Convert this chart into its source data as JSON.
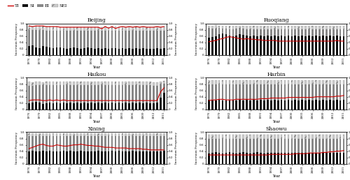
{
  "years": [
    1976,
    1977,
    1978,
    1979,
    1980,
    1981,
    1982,
    1983,
    1984,
    1985,
    1986,
    1987,
    1988,
    1989,
    1990,
    1991,
    1992,
    1993,
    1994,
    1995,
    1996,
    1997,
    1998,
    1999,
    2000,
    2001,
    2002,
    2003,
    2004,
    2005,
    2006,
    2007,
    2008,
    2009,
    2010,
    2011,
    2012,
    2013,
    2014,
    2015
  ],
  "stations": [
    "Beijing",
    "Ruoqiang",
    "Haikou",
    "Harbin",
    "Xining",
    "Shaowu"
  ],
  "TI_color": "#cc0000",
  "SI_color": "#111111",
  "EI_color": "#888888",
  "SEI_color": "#cccccc",
  "data": {
    "Beijing": {
      "SI": [
        0.28,
        0.3,
        0.25,
        0.22,
        0.28,
        0.26,
        0.24,
        0.22,
        0.25,
        0.24,
        0.22,
        0.2,
        0.22,
        0.24,
        0.22,
        0.2,
        0.22,
        0.24,
        0.22,
        0.2,
        0.22,
        0.2,
        0.22,
        0.2,
        0.22,
        0.22,
        0.2,
        0.22,
        0.2,
        0.22,
        0.2,
        0.22,
        0.2,
        0.22,
        0.2,
        0.2,
        0.2,
        0.22,
        0.2,
        0.22
      ],
      "EI": [
        0.52,
        0.5,
        0.55,
        0.56,
        0.52,
        0.52,
        0.54,
        0.56,
        0.52,
        0.52,
        0.54,
        0.56,
        0.54,
        0.52,
        0.54,
        0.56,
        0.54,
        0.52,
        0.54,
        0.56,
        0.54,
        0.58,
        0.56,
        0.58,
        0.56,
        0.56,
        0.58,
        0.56,
        0.58,
        0.56,
        0.58,
        0.56,
        0.58,
        0.56,
        0.58,
        0.58,
        0.58,
        0.56,
        0.58,
        0.56
      ],
      "SEI": [
        0.12,
        0.1,
        0.12,
        0.14,
        0.12,
        0.12,
        0.12,
        0.12,
        0.13,
        0.12,
        0.12,
        0.12,
        0.12,
        0.12,
        0.12,
        0.12,
        0.12,
        0.12,
        0.12,
        0.12,
        0.12,
        0.1,
        0.12,
        0.1,
        0.12,
        0.12,
        0.1,
        0.12,
        0.1,
        0.12,
        0.1,
        0.12,
        0.1,
        0.12,
        0.1,
        0.1,
        0.1,
        0.12,
        0.1,
        0.12
      ],
      "TI": [
        0.92,
        0.9,
        0.92,
        0.92,
        0.92,
        0.9,
        0.9,
        0.9,
        0.9,
        0.88,
        0.88,
        0.88,
        0.88,
        0.88,
        0.88,
        0.88,
        0.88,
        0.88,
        0.88,
        0.88,
        0.88,
        0.83,
        0.9,
        0.85,
        0.9,
        0.84,
        0.88,
        0.9,
        0.88,
        0.9,
        0.88,
        0.9,
        0.88,
        0.9,
        0.88,
        0.88,
        0.88,
        0.9,
        0.88,
        0.9
      ]
    },
    "Ruoqiang": {
      "SI": [
        0.55,
        0.58,
        0.6,
        0.65,
        0.68,
        0.65,
        0.62,
        0.6,
        0.62,
        0.65,
        0.63,
        0.62,
        0.6,
        0.62,
        0.6,
        0.62,
        0.6,
        0.62,
        0.6,
        0.62,
        0.6,
        0.62,
        0.6,
        0.62,
        0.6,
        0.62,
        0.6,
        0.62,
        0.6,
        0.62,
        0.6,
        0.62,
        0.6,
        0.62,
        0.6,
        0.62,
        0.6,
        0.62,
        0.6,
        0.6
      ],
      "EI": [
        0.3,
        0.26,
        0.24,
        0.2,
        0.16,
        0.18,
        0.2,
        0.22,
        0.22,
        0.2,
        0.2,
        0.2,
        0.22,
        0.2,
        0.22,
        0.2,
        0.22,
        0.2,
        0.22,
        0.2,
        0.22,
        0.2,
        0.22,
        0.2,
        0.22,
        0.2,
        0.22,
        0.2,
        0.22,
        0.2,
        0.22,
        0.2,
        0.22,
        0.2,
        0.22,
        0.2,
        0.22,
        0.2,
        0.22,
        0.22
      ],
      "SEI": [
        0.08,
        0.08,
        0.1,
        0.08,
        0.08,
        0.1,
        0.1,
        0.1,
        0.08,
        0.08,
        0.1,
        0.1,
        0.1,
        0.1,
        0.1,
        0.1,
        0.1,
        0.1,
        0.1,
        0.1,
        0.1,
        0.1,
        0.1,
        0.1,
        0.1,
        0.1,
        0.1,
        0.1,
        0.1,
        0.1,
        0.1,
        0.1,
        0.1,
        0.1,
        0.1,
        0.1,
        0.1,
        0.1,
        0.1,
        0.1
      ],
      "TI": [
        0.42,
        0.44,
        0.46,
        0.5,
        0.52,
        0.56,
        0.58,
        0.56,
        0.54,
        0.52,
        0.5,
        0.52,
        0.5,
        0.5,
        0.48,
        0.48,
        0.46,
        0.46,
        0.46,
        0.46,
        0.44,
        0.44,
        0.44,
        0.44,
        0.44,
        0.44,
        0.44,
        0.44,
        0.44,
        0.44,
        0.44,
        0.44,
        0.44,
        0.44,
        0.44,
        0.44,
        0.44,
        0.46,
        0.44,
        0.44
      ]
    },
    "Haikou": {
      "SI": [
        0.2,
        0.22,
        0.24,
        0.22,
        0.18,
        0.2,
        0.22,
        0.2,
        0.22,
        0.2,
        0.22,
        0.2,
        0.22,
        0.2,
        0.22,
        0.2,
        0.22,
        0.2,
        0.22,
        0.2,
        0.22,
        0.2,
        0.22,
        0.2,
        0.22,
        0.2,
        0.22,
        0.2,
        0.22,
        0.2,
        0.22,
        0.2,
        0.22,
        0.2,
        0.22,
        0.2,
        0.2,
        0.22,
        0.38,
        0.52
      ],
      "EI": [
        0.55,
        0.52,
        0.52,
        0.54,
        0.58,
        0.56,
        0.54,
        0.56,
        0.54,
        0.56,
        0.54,
        0.56,
        0.54,
        0.56,
        0.54,
        0.56,
        0.54,
        0.56,
        0.54,
        0.56,
        0.54,
        0.56,
        0.54,
        0.56,
        0.54,
        0.56,
        0.54,
        0.56,
        0.54,
        0.56,
        0.54,
        0.56,
        0.54,
        0.56,
        0.54,
        0.56,
        0.54,
        0.52,
        0.4,
        0.3
      ],
      "SEI": [
        0.12,
        0.12,
        0.12,
        0.12,
        0.1,
        0.12,
        0.12,
        0.12,
        0.12,
        0.12,
        0.12,
        0.12,
        0.12,
        0.12,
        0.12,
        0.12,
        0.12,
        0.12,
        0.12,
        0.12,
        0.12,
        0.12,
        0.12,
        0.12,
        0.12,
        0.12,
        0.12,
        0.12,
        0.12,
        0.12,
        0.12,
        0.12,
        0.12,
        0.12,
        0.12,
        0.12,
        0.12,
        0.12,
        0.1,
        0.08
      ],
      "TI": [
        0.28,
        0.3,
        0.3,
        0.3,
        0.28,
        0.28,
        0.3,
        0.28,
        0.3,
        0.28,
        0.3,
        0.28,
        0.28,
        0.28,
        0.28,
        0.28,
        0.28,
        0.28,
        0.28,
        0.28,
        0.28,
        0.28,
        0.28,
        0.28,
        0.28,
        0.28,
        0.28,
        0.28,
        0.28,
        0.28,
        0.28,
        0.28,
        0.28,
        0.28,
        0.28,
        0.28,
        0.28,
        0.28,
        0.55,
        0.68
      ]
    },
    "Harbin": {
      "SI": [
        0.3,
        0.28,
        0.28,
        0.3,
        0.28,
        0.28,
        0.28,
        0.3,
        0.28,
        0.3,
        0.28,
        0.3,
        0.28,
        0.3,
        0.28,
        0.3,
        0.28,
        0.3,
        0.28,
        0.3,
        0.28,
        0.3,
        0.28,
        0.3,
        0.28,
        0.3,
        0.28,
        0.3,
        0.28,
        0.3,
        0.28,
        0.3,
        0.28,
        0.3,
        0.28,
        0.3,
        0.28,
        0.3,
        0.28,
        0.3
      ],
      "EI": [
        0.5,
        0.52,
        0.52,
        0.5,
        0.52,
        0.52,
        0.52,
        0.5,
        0.52,
        0.5,
        0.52,
        0.5,
        0.52,
        0.5,
        0.52,
        0.5,
        0.52,
        0.5,
        0.52,
        0.5,
        0.52,
        0.5,
        0.52,
        0.5,
        0.52,
        0.5,
        0.52,
        0.5,
        0.52,
        0.5,
        0.52,
        0.5,
        0.52,
        0.5,
        0.52,
        0.5,
        0.52,
        0.5,
        0.52,
        0.5
      ],
      "SEI": [
        0.12,
        0.12,
        0.12,
        0.12,
        0.12,
        0.12,
        0.12,
        0.12,
        0.12,
        0.12,
        0.12,
        0.12,
        0.12,
        0.12,
        0.12,
        0.12,
        0.12,
        0.12,
        0.12,
        0.12,
        0.12,
        0.12,
        0.12,
        0.12,
        0.12,
        0.12,
        0.12,
        0.12,
        0.12,
        0.12,
        0.12,
        0.12,
        0.12,
        0.12,
        0.12,
        0.12,
        0.12,
        0.12,
        0.12,
        0.12
      ],
      "TI": [
        0.28,
        0.3,
        0.3,
        0.32,
        0.32,
        0.3,
        0.3,
        0.3,
        0.32,
        0.32,
        0.32,
        0.32,
        0.32,
        0.32,
        0.32,
        0.34,
        0.34,
        0.34,
        0.36,
        0.36,
        0.36,
        0.36,
        0.36,
        0.38,
        0.38,
        0.38,
        0.38,
        0.38,
        0.38,
        0.38,
        0.38,
        0.4,
        0.4,
        0.4,
        0.4,
        0.4,
        0.4,
        0.42,
        0.42,
        0.44
      ]
    },
    "Xining": {
      "SI": [
        0.4,
        0.42,
        0.4,
        0.4,
        0.42,
        0.4,
        0.42,
        0.4,
        0.4,
        0.4,
        0.42,
        0.4,
        0.42,
        0.4,
        0.4,
        0.42,
        0.4,
        0.4,
        0.4,
        0.4,
        0.42,
        0.4,
        0.4,
        0.4,
        0.42,
        0.4,
        0.42,
        0.4,
        0.4,
        0.4,
        0.42,
        0.4,
        0.4,
        0.4,
        0.4,
        0.4,
        0.4,
        0.4,
        0.4,
        0.42
      ],
      "EI": [
        0.48,
        0.46,
        0.48,
        0.48,
        0.46,
        0.48,
        0.46,
        0.48,
        0.48,
        0.48,
        0.46,
        0.48,
        0.46,
        0.48,
        0.48,
        0.46,
        0.48,
        0.48,
        0.48,
        0.48,
        0.46,
        0.48,
        0.48,
        0.48,
        0.46,
        0.48,
        0.46,
        0.48,
        0.48,
        0.48,
        0.46,
        0.48,
        0.48,
        0.48,
        0.48,
        0.48,
        0.48,
        0.48,
        0.48,
        0.46
      ],
      "SEI": [
        0.08,
        0.08,
        0.08,
        0.08,
        0.08,
        0.08,
        0.08,
        0.08,
        0.08,
        0.08,
        0.08,
        0.08,
        0.08,
        0.08,
        0.08,
        0.08,
        0.08,
        0.08,
        0.08,
        0.08,
        0.08,
        0.08,
        0.08,
        0.08,
        0.08,
        0.08,
        0.08,
        0.08,
        0.08,
        0.08,
        0.08,
        0.08,
        0.08,
        0.08,
        0.08,
        0.08,
        0.08,
        0.08,
        0.08,
        0.08
      ],
      "TI": [
        0.48,
        0.52,
        0.56,
        0.6,
        0.62,
        0.58,
        0.56,
        0.56,
        0.6,
        0.58,
        0.56,
        0.56,
        0.58,
        0.6,
        0.6,
        0.62,
        0.6,
        0.58,
        0.58,
        0.56,
        0.56,
        0.54,
        0.52,
        0.52,
        0.52,
        0.5,
        0.5,
        0.5,
        0.5,
        0.48,
        0.48,
        0.48,
        0.48,
        0.46,
        0.46,
        0.44,
        0.44,
        0.44,
        0.44,
        0.44
      ]
    },
    "Shaowu": {
      "SI": [
        0.32,
        0.34,
        0.36,
        0.34,
        0.32,
        0.34,
        0.36,
        0.34,
        0.32,
        0.34,
        0.36,
        0.34,
        0.32,
        0.34,
        0.36,
        0.34,
        0.32,
        0.34,
        0.34,
        0.34,
        0.34,
        0.34,
        0.34,
        0.34,
        0.34,
        0.34,
        0.34,
        0.34,
        0.34,
        0.34,
        0.34,
        0.34,
        0.34,
        0.34,
        0.34,
        0.34,
        0.34,
        0.34,
        0.34,
        0.34
      ],
      "EI": [
        0.48,
        0.46,
        0.44,
        0.46,
        0.48,
        0.46,
        0.44,
        0.46,
        0.48,
        0.46,
        0.44,
        0.46,
        0.48,
        0.46,
        0.44,
        0.46,
        0.48,
        0.46,
        0.46,
        0.46,
        0.46,
        0.46,
        0.46,
        0.46,
        0.46,
        0.46,
        0.46,
        0.46,
        0.46,
        0.46,
        0.46,
        0.46,
        0.46,
        0.46,
        0.46,
        0.46,
        0.46,
        0.46,
        0.46,
        0.46
      ],
      "SEI": [
        0.12,
        0.12,
        0.12,
        0.12,
        0.12,
        0.12,
        0.12,
        0.12,
        0.12,
        0.12,
        0.12,
        0.12,
        0.12,
        0.12,
        0.12,
        0.12,
        0.12,
        0.12,
        0.12,
        0.12,
        0.12,
        0.12,
        0.12,
        0.12,
        0.12,
        0.12,
        0.12,
        0.12,
        0.12,
        0.12,
        0.12,
        0.12,
        0.12,
        0.12,
        0.12,
        0.12,
        0.12,
        0.12,
        0.12,
        0.12
      ],
      "TI": [
        0.28,
        0.28,
        0.28,
        0.28,
        0.28,
        0.28,
        0.28,
        0.28,
        0.28,
        0.28,
        0.28,
        0.28,
        0.28,
        0.28,
        0.28,
        0.28,
        0.28,
        0.28,
        0.3,
        0.3,
        0.3,
        0.3,
        0.3,
        0.3,
        0.3,
        0.32,
        0.32,
        0.32,
        0.32,
        0.34,
        0.34,
        0.34,
        0.34,
        0.36,
        0.36,
        0.38,
        0.38,
        0.4,
        0.4,
        0.42
      ]
    }
  },
  "xtick_years": [
    1976,
    1979,
    1982,
    1985,
    1988,
    1991,
    1994,
    1997,
    2000,
    2003,
    2006,
    2009,
    2012,
    2015
  ],
  "yticks": [
    0,
    0.2,
    0.4,
    0.6,
    0.8,
    1.0
  ],
  "xlabel": "Year",
  "ylabel": "Inversion Frequency",
  "figsize": [
    5.0,
    2.58
  ],
  "dpi": 100
}
